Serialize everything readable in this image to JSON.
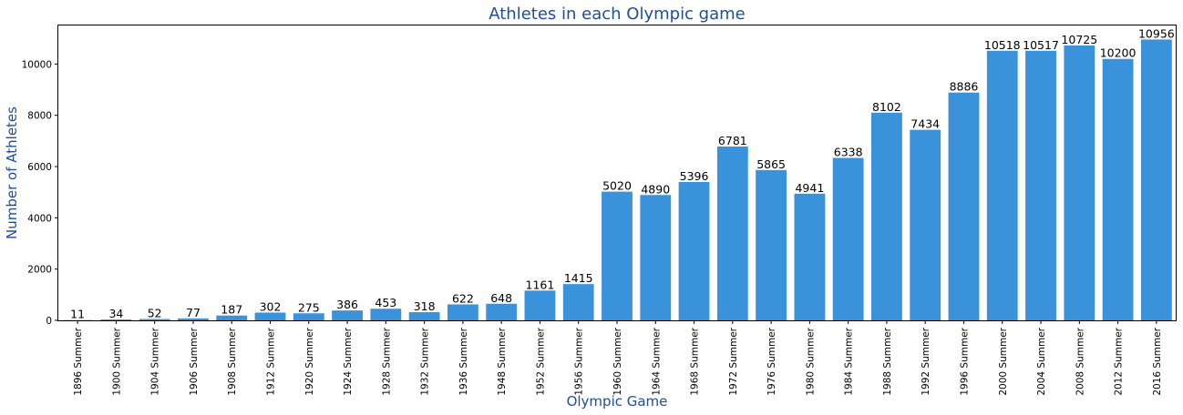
{
  "chart_data": {
    "type": "bar",
    "title": "Athletes in each Olympic game",
    "xlabel": "Olympic Game",
    "ylabel": "Number of Athletes",
    "categories": [
      "1896 Summer",
      "1900 Summer",
      "1904 Summer",
      "1906 Summer",
      "1908 Summer",
      "1912 Summer",
      "1920 Summer",
      "1924 Summer",
      "1928 Summer",
      "1932 Summer",
      "1936 Summer",
      "1948 Summer",
      "1952 Summer",
      "1956 Summer",
      "1960 Summer",
      "1964 Summer",
      "1968 Summer",
      "1972 Summer",
      "1976 Summer",
      "1980 Summer",
      "1984 Summer",
      "1988 Summer",
      "1992 Summer",
      "1996 Summer",
      "2000 Summer",
      "2004 Summer",
      "2008 Summer",
      "2012 Summer",
      "2016 Summer"
    ],
    "values": [
      11,
      34,
      52,
      77,
      187,
      302,
      275,
      386,
      453,
      318,
      622,
      648,
      1161,
      1415,
      5020,
      4890,
      5396,
      6781,
      5865,
      4941,
      6338,
      8102,
      7434,
      8886,
      10518,
      10517,
      10725,
      10200,
      10956
    ],
    "yticks": [
      0,
      2000,
      4000,
      6000,
      8000,
      10000
    ],
    "ylim": [
      0,
      11504
    ],
    "grid": false,
    "bar_color": "#3a92db"
  }
}
